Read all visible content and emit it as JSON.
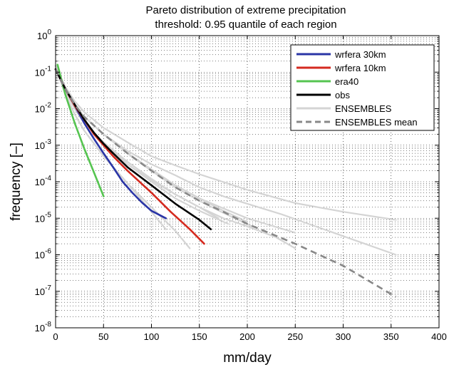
{
  "chart_data": {
    "type": "line",
    "title": "Pareto distribution of extreme precipitation",
    "subtitle": "threshold: 0.95 quantile of each region",
    "xlabel": "mm/day",
    "ylabel": "frequency [–]",
    "xlim": [
      0,
      400
    ],
    "ylim": [
      1e-08,
      1
    ],
    "yscale": "log",
    "grid": true,
    "legend_position": "top-right",
    "x_ticks": [
      "0",
      "50",
      "100",
      "150",
      "200",
      "250",
      "300",
      "350",
      "400"
    ],
    "y_ticks": [
      {
        "base": "10",
        "exp": "0"
      },
      {
        "base": "10",
        "exp": "-1"
      },
      {
        "base": "10",
        "exp": "-2"
      },
      {
        "base": "10",
        "exp": "-3"
      },
      {
        "base": "10",
        "exp": "-4"
      },
      {
        "base": "10",
        "exp": "-5"
      },
      {
        "base": "10",
        "exp": "-6"
      },
      {
        "base": "10",
        "exp": "-7"
      },
      {
        "base": "10",
        "exp": "-8"
      }
    ],
    "series": [
      {
        "name": "ENSEMBLES",
        "color": "#d4d4d4",
        "style": "solid",
        "legend": false,
        "x": [
          0,
          10,
          20,
          30,
          50,
          75,
          100,
          125,
          150,
          180
        ],
        "y": [
          0.15,
          0.03,
          0.01,
          0.004,
          0.0012,
          0.0003,
          0.0001,
          3.5e-05,
          1.6e-05,
          7e-06
        ]
      },
      {
        "name": "ENSEMBLES",
        "color": "#d4d4d4",
        "style": "solid",
        "legend": false,
        "x": [
          0,
          10,
          20,
          30,
          50,
          75,
          100,
          125,
          150,
          175,
          200,
          235,
          355
        ],
        "y": [
          0.15,
          0.03,
          0.012,
          0.006,
          0.002,
          0.0007,
          0.0003,
          0.00015,
          7e-05,
          4e-05,
          2.5e-05,
          1.3e-05,
          1e-06
        ]
      },
      {
        "name": "ENSEMBLES",
        "color": "#d4d4d4",
        "style": "solid",
        "legend": false,
        "x": [
          0,
          10,
          20,
          30,
          50,
          75,
          100,
          125,
          150,
          200,
          250,
          300,
          355
        ],
        "y": [
          0.15,
          0.04,
          0.016,
          0.008,
          0.003,
          0.0012,
          0.0005,
          0.00028,
          0.00016,
          6e-05,
          2.6e-05,
          1.5e-05,
          9e-06
        ]
      },
      {
        "name": "ENSEMBLES",
        "color": "#d4d4d4",
        "style": "solid",
        "legend": false,
        "x": [
          0,
          10,
          20,
          30,
          50,
          75,
          100,
          125,
          150,
          175,
          200,
          230,
          250
        ],
        "y": [
          0.15,
          0.03,
          0.01,
          0.004,
          0.0012,
          0.0003,
          0.00011,
          4.5e-05,
          2e-05,
          1e-05,
          6e-06,
          3e-06,
          1.5e-06
        ]
      },
      {
        "name": "ENSEMBLES",
        "color": "#d4d4d4",
        "style": "solid",
        "legend": false,
        "x": [
          0,
          10,
          20,
          30,
          50,
          75,
          100,
          125,
          150,
          170
        ],
        "y": [
          0.15,
          0.03,
          0.01,
          0.004,
          0.0012,
          0.00035,
          0.00012,
          4.5e-05,
          2e-05,
          1e-05
        ]
      },
      {
        "name": "ENSEMBLES",
        "color": "#d4d4d4",
        "style": "solid",
        "legend": false,
        "x": [
          0,
          10,
          20,
          30,
          50,
          75,
          100,
          125,
          140
        ],
        "y": [
          0.15,
          0.025,
          0.007,
          0.0025,
          0.0005,
          9e-05,
          2e-05,
          4.5e-06,
          1.5e-06
        ]
      },
      {
        "name": "ENSEMBLES",
        "color": "#d4d4d4",
        "style": "solid",
        "legend": false,
        "x": [
          0,
          10,
          20,
          30,
          50,
          75,
          100,
          115
        ],
        "y": [
          0.15,
          0.025,
          0.007,
          0.0025,
          0.0005,
          9e-05,
          1.5e-05,
          5e-06
        ]
      },
      {
        "name": "ENSEMBLES",
        "color": "#d4d4d4",
        "style": "solid",
        "legend": false,
        "x": [
          0,
          10,
          20,
          30,
          50,
          75,
          100,
          125,
          150,
          175,
          200
        ],
        "y": [
          0.15,
          0.035,
          0.012,
          0.006,
          0.002,
          0.0006,
          0.00022,
          8e-05,
          3.5e-05,
          1.6e-05,
          8e-06
        ]
      },
      {
        "name": "ENSEMBLES",
        "color": "#d4d4d4",
        "style": "solid",
        "legend": false,
        "x": [
          0,
          10,
          20,
          30,
          50,
          75,
          100,
          125,
          150,
          200,
          250
        ],
        "y": [
          0.15,
          0.035,
          0.013,
          0.006,
          0.002,
          0.0006,
          0.0002,
          8e-05,
          3.5e-05,
          1e-05,
          4e-06
        ]
      },
      {
        "name": "ENSEMBLES",
        "color": "#d4d4d4",
        "style": "solid",
        "legend": false,
        "x": [
          0,
          10,
          20,
          30,
          50,
          75,
          100,
          125,
          150,
          175,
          205
        ],
        "y": [
          0.15,
          0.035,
          0.013,
          0.006,
          0.002,
          0.0006,
          0.0002,
          7e-05,
          3e-05,
          1.4e-05,
          6e-06
        ]
      },
      {
        "name": "wrfera 30km",
        "color": "#2a35a6",
        "style": "solid",
        "legend": true,
        "x": [
          0,
          10,
          20,
          30,
          40,
          50,
          60,
          70,
          80,
          90,
          100,
          115
        ],
        "y": [
          0.12,
          0.035,
          0.012,
          0.004,
          0.0015,
          0.0006,
          0.00025,
          0.0001,
          5e-05,
          2.7e-05,
          1.6e-05,
          1e-05
        ]
      },
      {
        "name": "wrfera 10km",
        "color": "#d42a1f",
        "style": "solid",
        "legend": true,
        "x": [
          0,
          10,
          20,
          30,
          40,
          50,
          60,
          75,
          100,
          120,
          140,
          155
        ],
        "y": [
          0.12,
          0.035,
          0.012,
          0.005,
          0.002,
          0.001,
          0.0005,
          0.0002,
          5e-05,
          1.5e-05,
          5e-06,
          2e-06
        ]
      },
      {
        "name": "era40",
        "color": "#55c450",
        "style": "solid",
        "legend": true,
        "x": [
          2,
          10,
          20,
          30,
          40,
          50
        ],
        "y": [
          0.16,
          0.025,
          0.004,
          0.0008,
          0.00018,
          4e-05
        ]
      },
      {
        "name": "obs",
        "color": "#000000",
        "style": "solid",
        "legend": true,
        "x": [
          0,
          10,
          20,
          30,
          40,
          50,
          60,
          75,
          100,
          125,
          150,
          162
        ],
        "y": [
          0.12,
          0.035,
          0.013,
          0.005,
          0.0022,
          0.0011,
          0.0006,
          0.00025,
          8e-05,
          2.5e-05,
          9e-06,
          5e-06
        ]
      },
      {
        "name": "ENSEMBLES mean",
        "color": "#888888",
        "style": "dashed",
        "legend": true,
        "x": [
          0,
          10,
          20,
          30,
          50,
          75,
          100,
          125,
          150,
          175,
          200,
          250,
          300,
          355
        ],
        "y": [
          0.12,
          0.035,
          0.013,
          0.006,
          0.002,
          0.0006,
          0.0002,
          7e-05,
          3e-05,
          1.5e-05,
          7e-06,
          2e-06,
          5e-07,
          7e-08
        ]
      }
    ],
    "legend": {
      "entries": [
        {
          "label": "wrfera 30km",
          "color": "#2a35a6",
          "style": "solid"
        },
        {
          "label": "wrfera 10km",
          "color": "#d42a1f",
          "style": "solid"
        },
        {
          "label": "era40",
          "color": "#55c450",
          "style": "solid"
        },
        {
          "label": "obs",
          "color": "#000000",
          "style": "solid"
        },
        {
          "label": "ENSEMBLES",
          "color": "#d4d4d4",
          "style": "solid"
        },
        {
          "label": "ENSEMBLES mean",
          "color": "#888888",
          "style": "dashed"
        }
      ]
    }
  }
}
